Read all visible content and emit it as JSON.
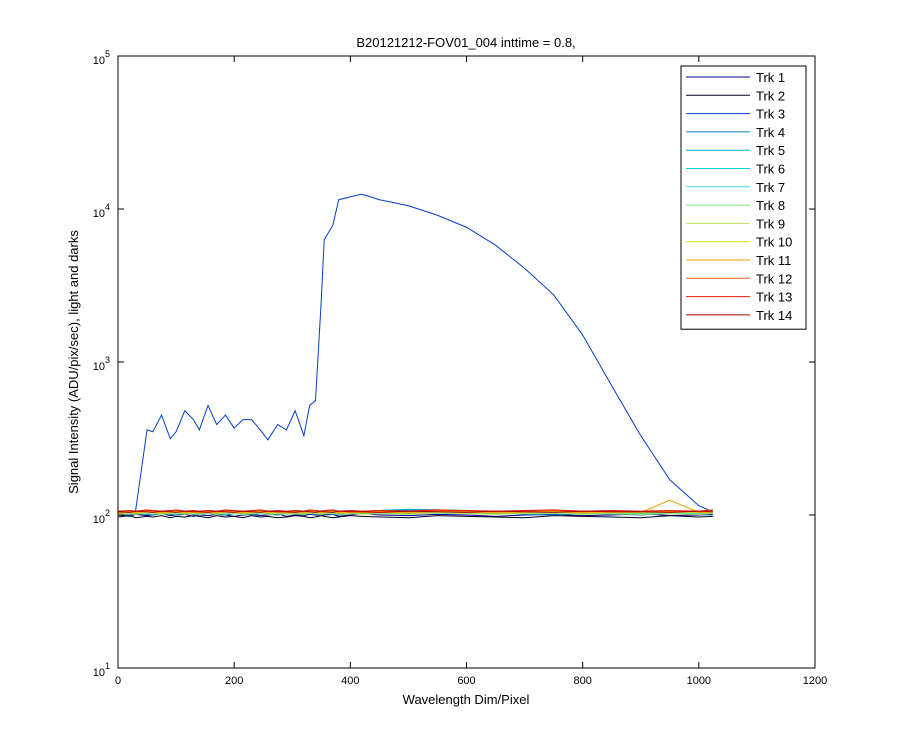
{
  "chart_data": {
    "type": "line",
    "title": "B20121212-FOV01_004 inttime = 0.8,",
    "xlabel": "Wavelength Dim/Pixel",
    "ylabel": "Signal Intensity (ADU/pix/sec), light and darks",
    "xlim": [
      0,
      1200
    ],
    "xticks": [
      0,
      200,
      400,
      600,
      800,
      1000,
      1200
    ],
    "ylim": [
      10,
      100000
    ],
    "log_y": true,
    "yticks": [
      {
        "value": 10,
        "label": "10^1"
      },
      {
        "value": 100,
        "label": "10^2"
      },
      {
        "value": 1000,
        "label": "10^3"
      },
      {
        "value": 10000,
        "label": "10^4"
      },
      {
        "value": 100000,
        "label": "10^5"
      }
    ],
    "legend": "upper right",
    "x": [
      0,
      20,
      30,
      50,
      60,
      75,
      90,
      100,
      115,
      130,
      140,
      155,
      170,
      185,
      200,
      215,
      230,
      245,
      258,
      275,
      290,
      305,
      320,
      330,
      340,
      350,
      355,
      370,
      380,
      400,
      420,
      450,
      500,
      550,
      600,
      650,
      700,
      750,
      800,
      850,
      900,
      950,
      1000,
      1024
    ],
    "series": [
      {
        "name": "Trk 1",
        "color": "#000099",
        "values": [
          100,
          98,
          101,
          99,
          100,
          102,
          99,
          100,
          101,
          98,
          100,
          99,
          101,
          100,
          98,
          100,
          101,
          99,
          100,
          102,
          98,
          100,
          99,
          101,
          100,
          99,
          100,
          101,
          98,
          100,
          102,
          100,
          99,
          101,
          100,
          98,
          100,
          101,
          99,
          100,
          102,
          99,
          100,
          101
        ]
      },
      {
        "name": "Trk 2",
        "color": "#000020",
        "values": [
          97,
          99,
          96,
          98,
          97,
          99,
          96,
          98,
          97,
          99,
          98,
          96,
          99,
          97,
          98,
          96,
          99,
          97,
          98,
          96,
          97,
          99,
          98,
          96,
          97,
          99,
          98,
          96,
          97,
          99,
          98,
          97,
          96,
          99,
          98,
          97,
          96,
          99,
          98,
          97,
          96,
          99,
          97,
          98
        ]
      },
      {
        "name": "Trk 3",
        "color": "#0040c8",
        "values": [
          100,
          100,
          105,
          360,
          350,
          450,
          315,
          350,
          480,
          420,
          360,
          520,
          390,
          450,
          370,
          420,
          420,
          360,
          310,
          390,
          360,
          480,
          330,
          520,
          560,
          2540,
          6300,
          7850,
          11500,
          12000,
          12500,
          11500,
          10500,
          9100,
          7600,
          5800,
          4100,
          2750,
          1500,
          700,
          330,
          170,
          115,
          105
        ]
      },
      {
        "name": "Trk 4",
        "color": "#0080b0",
        "values": [
          101,
          100,
          102,
          101,
          100,
          102,
          101,
          100,
          102,
          101,
          100,
          102,
          101,
          100,
          102,
          101,
          100,
          102,
          101,
          100,
          102,
          101,
          100,
          102,
          101,
          100,
          102,
          101,
          100,
          102,
          104,
          106,
          108,
          108,
          107,
          104,
          101,
          100,
          102,
          101,
          100,
          102,
          101,
          100
        ]
      },
      {
        "name": "Trk 5",
        "color": "#00b0d0",
        "values": [
          103,
          102,
          104,
          103,
          102,
          104,
          103,
          102,
          104,
          103,
          102,
          104,
          103,
          102,
          104,
          103,
          102,
          104,
          103,
          102,
          104,
          103,
          102,
          104,
          103,
          102,
          104,
          103,
          102,
          104,
          105,
          107,
          109,
          108,
          106,
          104,
          103,
          102,
          104,
          103,
          102,
          104,
          103,
          102
        ]
      },
      {
        "name": "Trk 6",
        "color": "#00d0e0",
        "values": [
          102,
          103,
          102,
          104,
          103,
          102,
          103,
          104,
          102,
          103,
          102,
          103,
          102,
          104,
          103,
          102,
          103,
          104,
          102,
          103,
          102,
          103,
          102,
          104,
          103,
          102,
          103,
          104,
          102,
          103,
          102,
          103,
          102,
          104,
          103,
          102,
          103,
          104,
          102,
          103,
          102,
          103,
          102,
          104
        ]
      },
      {
        "name": "Trk 7",
        "color": "#40e0e0",
        "values": [
          104,
          103,
          104,
          102,
          103,
          104,
          103,
          102,
          104,
          103,
          104,
          103,
          104,
          102,
          103,
          104,
          103,
          102,
          104,
          103,
          104,
          103,
          104,
          102,
          103,
          104,
          103,
          102,
          104,
          103,
          104,
          103,
          104,
          102,
          103,
          104,
          103,
          102,
          104,
          103,
          104,
          103,
          104,
          102
        ]
      },
      {
        "name": "Trk 8",
        "color": "#80e080",
        "values": [
          103,
          104,
          103,
          105,
          104,
          103,
          104,
          105,
          103,
          104,
          103,
          104,
          103,
          105,
          104,
          103,
          104,
          105,
          103,
          104,
          103,
          104,
          103,
          105,
          104,
          103,
          104,
          105,
          103,
          104,
          103,
          104,
          103,
          105,
          104,
          103,
          104,
          105,
          103,
          104,
          103,
          104,
          103,
          105
        ]
      },
      {
        "name": "Trk 9",
        "color": "#c0e060",
        "values": [
          101,
          102,
          101,
          103,
          102,
          101,
          102,
          103,
          101,
          102,
          101,
          102,
          101,
          103,
          102,
          101,
          102,
          103,
          101,
          102,
          101,
          102,
          101,
          103,
          102,
          101,
          102,
          103,
          101,
          102,
          101,
          102,
          101,
          103,
          102,
          101,
          102,
          103,
          101,
          102,
          101,
          102,
          101,
          103
        ]
      },
      {
        "name": "Trk 10",
        "color": "#e0e000",
        "values": [
          104,
          105,
          104,
          106,
          105,
          104,
          105,
          106,
          104,
          105,
          104,
          105,
          104,
          106,
          105,
          104,
          105,
          106,
          104,
          105,
          104,
          105,
          104,
          106,
          105,
          104,
          105,
          106,
          104,
          105,
          104,
          105,
          104,
          106,
          105,
          104,
          105,
          106,
          104,
          105,
          104,
          105,
          104,
          106
        ]
      },
      {
        "name": "Trk 11",
        "color": "#f0a000",
        "values": [
          103,
          104,
          103,
          105,
          104,
          103,
          104,
          105,
          103,
          104,
          103,
          104,
          103,
          105,
          104,
          103,
          104,
          105,
          103,
          104,
          103,
          104,
          103,
          105,
          104,
          103,
          104,
          105,
          103,
          104,
          103,
          104,
          103,
          105,
          104,
          103,
          104,
          105,
          103,
          104,
          104,
          125,
          104,
          103
        ]
      },
      {
        "name": "Trk 12",
        "color": "#f06020",
        "values": [
          105,
          106,
          105,
          107,
          106,
          105,
          106,
          107,
          105,
          106,
          105,
          106,
          105,
          107,
          106,
          105,
          106,
          107,
          105,
          106,
          105,
          106,
          105,
          107,
          106,
          105,
          106,
          107,
          105,
          106,
          105,
          106,
          105,
          107,
          106,
          105,
          106,
          107,
          105,
          106,
          105,
          106,
          105,
          107
        ]
      },
      {
        "name": "Trk 13",
        "color": "#e02000",
        "values": [
          106,
          107,
          106,
          108,
          107,
          106,
          107,
          108,
          106,
          107,
          106,
          107,
          106,
          108,
          107,
          106,
          107,
          108,
          106,
          107,
          106,
          107,
          106,
          108,
          107,
          106,
          107,
          108,
          106,
          107,
          106,
          107,
          106,
          108,
          107,
          106,
          107,
          108,
          106,
          107,
          106,
          107,
          106,
          108
        ]
      },
      {
        "name": "Trk 14",
        "color": "#b00000",
        "values": [
          105,
          104,
          106,
          105,
          104,
          106,
          105,
          104,
          106,
          105,
          105,
          104,
          106,
          105,
          104,
          106,
          105,
          104,
          106,
          105,
          105,
          104,
          106,
          105,
          104,
          106,
          105,
          104,
          106,
          105,
          105,
          104,
          106,
          105,
          104,
          106,
          105,
          104,
          106,
          105,
          105,
          104,
          106,
          105
        ]
      }
    ]
  }
}
